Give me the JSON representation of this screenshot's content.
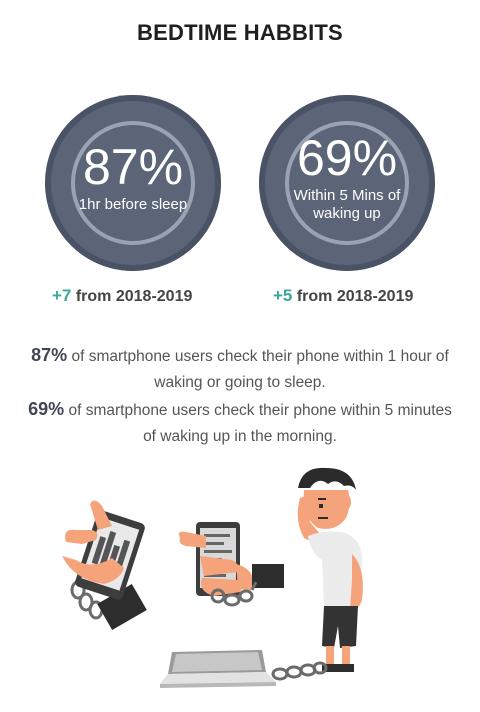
{
  "title": "BEDTIME HABBITS",
  "stats": [
    {
      "value": "87%",
      "caption": "1hr before sleep",
      "delta": "+7",
      "delta_label": "from 2018-2019"
    },
    {
      "value": "69%",
      "caption": "Within 5 Mins of waking up",
      "delta": "+5",
      "delta_label": "from 2018-2019"
    }
  ],
  "paragraphs": [
    {
      "pct": "87%",
      "text": "of smartphone users check their phone within 1 hour of waking or going to sleep."
    },
    {
      "pct": "69%",
      "text": "of smartphone users check their phone within 5 minutes of waking up in the morning."
    }
  ],
  "colors": {
    "circle": "#5b6577",
    "ring": "#9aa3b3",
    "accent": "#3aa89a",
    "skin": "#f4a37a",
    "cuff": "#2d2d2d",
    "chain": "#6b6b6b"
  }
}
